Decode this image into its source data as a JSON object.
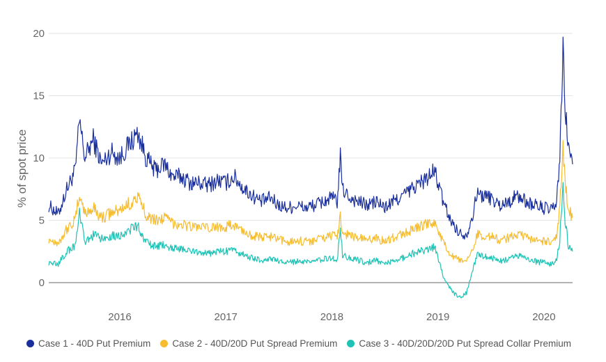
{
  "chart_data": {
    "type": "line",
    "title": "",
    "xlabel": "",
    "ylabel": "% of spot price",
    "xlim": [
      2015.33,
      2020.27
    ],
    "ylim": [
      -1.5,
      20
    ],
    "y_ticks": [
      0,
      5,
      10,
      15,
      20
    ],
    "y_tick_labels": [
      "0",
      "5",
      "10",
      "15",
      "20"
    ],
    "x_ticks": [
      2016,
      2017,
      2018,
      2019,
      2020
    ],
    "x_tick_labels": [
      "2016",
      "2017",
      "2018",
      "2019",
      "2020"
    ],
    "grid": "horizontal",
    "legend_position": "bottom",
    "series": [
      {
        "name": "Case 1 - 40D Put Premium",
        "color": "#1a2f9c",
        "x": [
          2015.33,
          2015.42,
          2015.5,
          2015.58,
          2015.62,
          2015.67,
          2015.75,
          2015.83,
          2015.92,
          2016.0,
          2016.08,
          2016.17,
          2016.25,
          2016.33,
          2016.42,
          2016.5,
          2016.58,
          2016.67,
          2016.75,
          2016.83,
          2016.92,
          2017.0,
          2017.08,
          2017.17,
          2017.25,
          2017.33,
          2017.42,
          2017.5,
          2017.58,
          2017.67,
          2017.75,
          2017.83,
          2017.92,
          2018.0,
          2018.05,
          2018.08,
          2018.1,
          2018.17,
          2018.25,
          2018.33,
          2018.42,
          2018.5,
          2018.58,
          2018.67,
          2018.75,
          2018.83,
          2018.92,
          2018.97,
          2019.0,
          2019.05,
          2019.12,
          2019.2,
          2019.27,
          2019.33,
          2019.37,
          2019.42,
          2019.5,
          2019.58,
          2019.67,
          2019.75,
          2019.83,
          2019.92,
          2020.0,
          2020.08,
          2020.12,
          2020.15,
          2020.18,
          2020.2,
          2020.23,
          2020.27
        ],
        "values": [
          6.2,
          5.5,
          7.5,
          9.0,
          13.0,
          10.0,
          11.5,
          9.5,
          10.5,
          10.0,
          11.0,
          12.0,
          10.0,
          9.0,
          9.5,
          8.5,
          8.5,
          8.0,
          8.0,
          7.8,
          8.2,
          8.0,
          8.5,
          7.5,
          7.0,
          6.5,
          6.8,
          6.2,
          6.0,
          6.2,
          6.0,
          6.2,
          6.5,
          6.8,
          6.5,
          10.0,
          7.5,
          6.8,
          6.5,
          6.2,
          6.5,
          6.0,
          6.5,
          7.0,
          7.5,
          8.0,
          8.5,
          9.0,
          8.0,
          6.5,
          5.0,
          4.0,
          3.8,
          5.5,
          7.2,
          7.0,
          6.8,
          6.2,
          6.5,
          7.0,
          6.5,
          6.2,
          6.0,
          5.8,
          6.5,
          10.0,
          18.5,
          14.0,
          11.0,
          9.5
        ]
      },
      {
        "name": "Case 2 - 40D/20D Put Spread Premium",
        "color": "#f5bd2f",
        "x": [
          2015.33,
          2015.42,
          2015.5,
          2015.58,
          2015.62,
          2015.67,
          2015.75,
          2015.83,
          2015.92,
          2016.0,
          2016.08,
          2016.17,
          2016.25,
          2016.33,
          2016.42,
          2016.5,
          2016.58,
          2016.67,
          2016.75,
          2016.83,
          2016.92,
          2017.0,
          2017.08,
          2017.17,
          2017.25,
          2017.33,
          2017.42,
          2017.5,
          2017.58,
          2017.67,
          2017.75,
          2017.83,
          2017.92,
          2018.0,
          2018.05,
          2018.08,
          2018.1,
          2018.17,
          2018.25,
          2018.33,
          2018.42,
          2018.5,
          2018.58,
          2018.67,
          2018.75,
          2018.83,
          2018.92,
          2018.97,
          2019.0,
          2019.05,
          2019.12,
          2019.2,
          2019.27,
          2019.33,
          2019.37,
          2019.42,
          2019.5,
          2019.58,
          2019.67,
          2019.75,
          2019.83,
          2019.92,
          2020.0,
          2020.08,
          2020.12,
          2020.15,
          2020.18,
          2020.2,
          2020.23,
          2020.27
        ],
        "values": [
          3.5,
          3.2,
          4.3,
          5.0,
          7.2,
          5.5,
          6.0,
          5.2,
          5.6,
          5.8,
          6.3,
          6.8,
          5.5,
          5.0,
          5.2,
          4.8,
          4.7,
          4.5,
          4.5,
          4.3,
          4.5,
          4.5,
          4.6,
          4.1,
          3.8,
          3.6,
          3.7,
          3.4,
          3.3,
          3.4,
          3.3,
          3.4,
          3.6,
          3.8,
          3.6,
          5.5,
          4.0,
          3.8,
          3.6,
          3.4,
          3.6,
          3.3,
          3.6,
          3.9,
          4.2,
          4.5,
          4.7,
          4.9,
          4.2,
          3.2,
          2.2,
          1.8,
          1.6,
          2.8,
          3.9,
          3.8,
          3.7,
          3.4,
          3.6,
          3.9,
          3.6,
          3.4,
          3.3,
          3.2,
          3.6,
          6.0,
          11.0,
          8.0,
          6.0,
          5.2
        ]
      },
      {
        "name": "Case 3 - 40D/20D/20D Put Spread Collar Premium",
        "color": "#1ec3b5",
        "x": [
          2015.33,
          2015.42,
          2015.5,
          2015.58,
          2015.62,
          2015.67,
          2015.75,
          2015.83,
          2015.92,
          2016.0,
          2016.08,
          2016.17,
          2016.25,
          2016.33,
          2016.42,
          2016.5,
          2016.58,
          2016.67,
          2016.75,
          2016.83,
          2016.92,
          2017.0,
          2017.08,
          2017.17,
          2017.25,
          2017.33,
          2017.42,
          2017.5,
          2017.58,
          2017.67,
          2017.75,
          2017.83,
          2017.92,
          2018.0,
          2018.05,
          2018.08,
          2018.1,
          2018.17,
          2018.25,
          2018.33,
          2018.42,
          2018.5,
          2018.58,
          2018.67,
          2018.75,
          2018.83,
          2018.92,
          2018.97,
          2019.0,
          2019.05,
          2019.12,
          2019.2,
          2019.27,
          2019.33,
          2019.37,
          2019.42,
          2019.5,
          2019.58,
          2019.67,
          2019.75,
          2019.83,
          2019.92,
          2020.0,
          2020.08,
          2020.12,
          2020.15,
          2020.18,
          2020.2,
          2020.23,
          2020.27
        ],
        "values": [
          1.6,
          1.5,
          2.5,
          3.0,
          5.5,
          3.2,
          3.8,
          3.5,
          3.8,
          3.8,
          4.2,
          4.5,
          3.2,
          2.9,
          3.0,
          2.8,
          2.7,
          2.5,
          2.5,
          2.3,
          2.5,
          2.5,
          2.6,
          2.2,
          2.0,
          1.8,
          1.9,
          1.7,
          1.6,
          1.7,
          1.6,
          1.7,
          1.9,
          2.0,
          1.8,
          4.5,
          2.2,
          2.0,
          1.8,
          1.6,
          1.8,
          1.5,
          1.8,
          2.0,
          2.3,
          2.5,
          2.7,
          2.9,
          2.0,
          0.5,
          -0.5,
          -1.3,
          -0.8,
          1.0,
          2.2,
          2.1,
          2.0,
          1.7,
          1.9,
          2.2,
          1.9,
          1.7,
          1.6,
          1.5,
          1.9,
          3.5,
          8.0,
          5.0,
          3.0,
          2.5
        ]
      }
    ]
  }
}
